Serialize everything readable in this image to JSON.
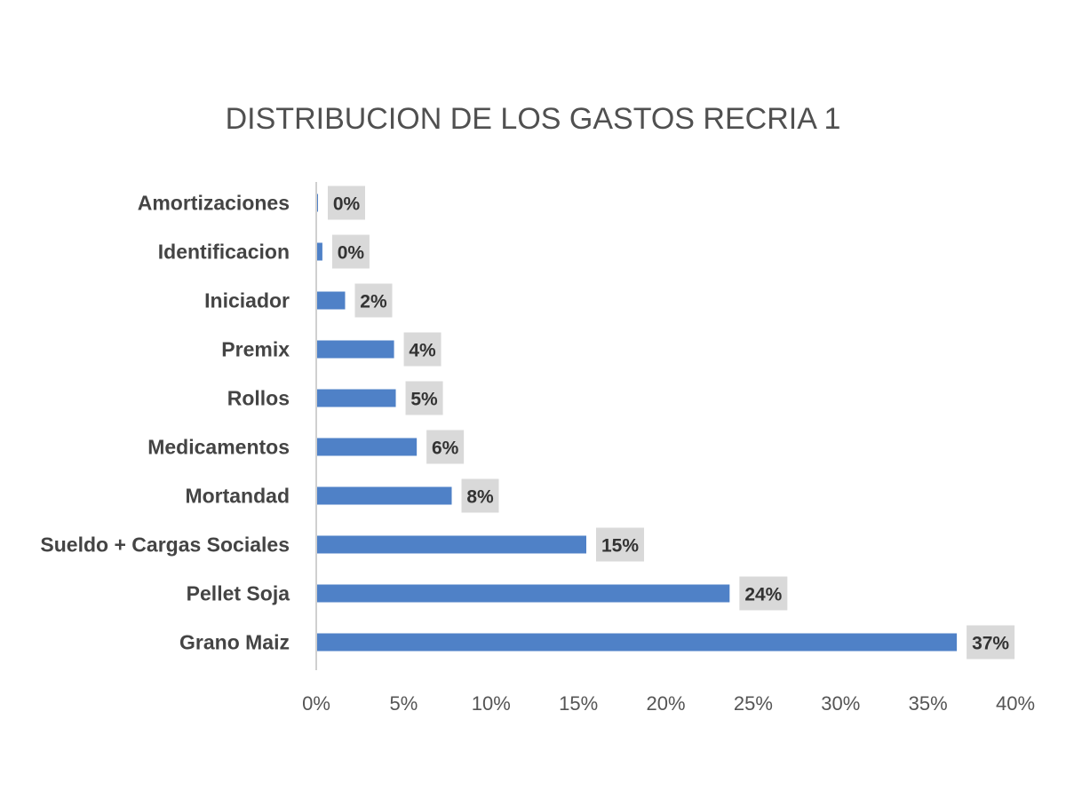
{
  "chart_data": {
    "type": "bar",
    "orientation": "horizontal",
    "title": "DISTRIBUCION DE LOS GASTOS RECRIA 1",
    "xlabel": "",
    "ylabel": "",
    "categories": [
      "Amortizaciones",
      "Identificacion",
      "Iniciador",
      "Premix",
      "Rollos",
      "Medicamentos",
      "Mortandad",
      "Sueldo + Cargas Sociales",
      "Pellet Soja",
      "Grano Maiz"
    ],
    "values": [
      0.05,
      0.3,
      1.6,
      4.4,
      4.5,
      5.7,
      7.7,
      15.4,
      23.6,
      36.6
    ],
    "data_labels": [
      "0%",
      "0%",
      "2%",
      "4%",
      "5%",
      "6%",
      "8%",
      "15%",
      "24%",
      "37%"
    ],
    "xlim": [
      0,
      40
    ],
    "xticks": [
      0,
      5,
      10,
      15,
      20,
      25,
      30,
      35,
      40
    ],
    "xtick_labels": [
      "0%",
      "5%",
      "10%",
      "15%",
      "20%",
      "25%",
      "30%",
      "35%",
      "40%"
    ],
    "grid": false,
    "legend": "none",
    "colors": {
      "bar": "#4f81c7",
      "label_bg": "#d9d9d9",
      "axis": "#d0d0d0"
    }
  }
}
